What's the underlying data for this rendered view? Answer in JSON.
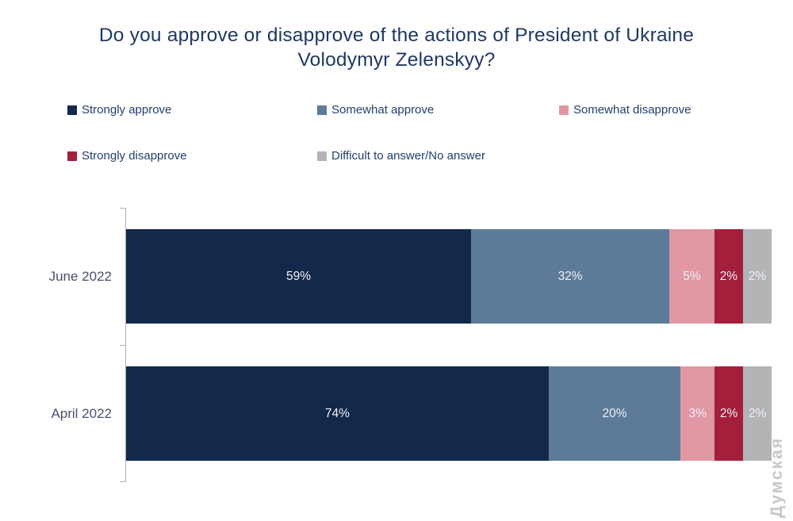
{
  "title": {
    "line1": "Do you approve or disapprove of the actions of President of Ukraine",
    "line2": "Volodymyr Zelenskyy?",
    "full": "Do you approve or disapprove of the actions of President of Ukraine Volodymyr Zelenskyy?"
  },
  "watermark": {
    "text": "Думская"
  },
  "colors": {
    "title_text": "#1f3864",
    "legend_text": "#21406b",
    "category_label_text": "#44546a",
    "bar_label_text": "#eef0f3",
    "axis_line": "#b0b0b0",
    "strongly_approve": "#13294b",
    "somewhat_approve": "#5d7b99",
    "somewhat_disapprove": "#e297a5",
    "strongly_disapprove": "#a31f3c",
    "difficult_no_answer": "#b3b4b6"
  },
  "chart_data": {
    "type": "bar",
    "orientation": "horizontal",
    "stacked": true,
    "grid": false,
    "legend_position": "top",
    "axis_range_percent": [
      0,
      100
    ],
    "categories": [
      "June 2022",
      "April 2022"
    ],
    "series": [
      {
        "name": "Strongly approve",
        "color": "#13294b",
        "values": [
          59,
          74
        ]
      },
      {
        "name": "Somewhat approve",
        "color": "#5d7b99",
        "values": [
          32,
          20
        ]
      },
      {
        "name": "Somewhat disapprove",
        "color": "#e297a5",
        "values": [
          5,
          3
        ]
      },
      {
        "name": "Strongly disapprove",
        "color": "#a31f3c",
        "values": [
          2,
          2
        ]
      },
      {
        "name": "Difficult to answer/No answer",
        "color": "#b3b4b6",
        "values": [
          2,
          2
        ]
      }
    ],
    "value_labels": [
      [
        "59%",
        "32%",
        "5%",
        "2%",
        "2%"
      ],
      [
        "74%",
        "20%",
        "3%",
        "2%",
        "2%"
      ]
    ],
    "title": "Do you approve or disapprove of the actions of President of Ukraine Volodymyr Zelenskyy?"
  }
}
